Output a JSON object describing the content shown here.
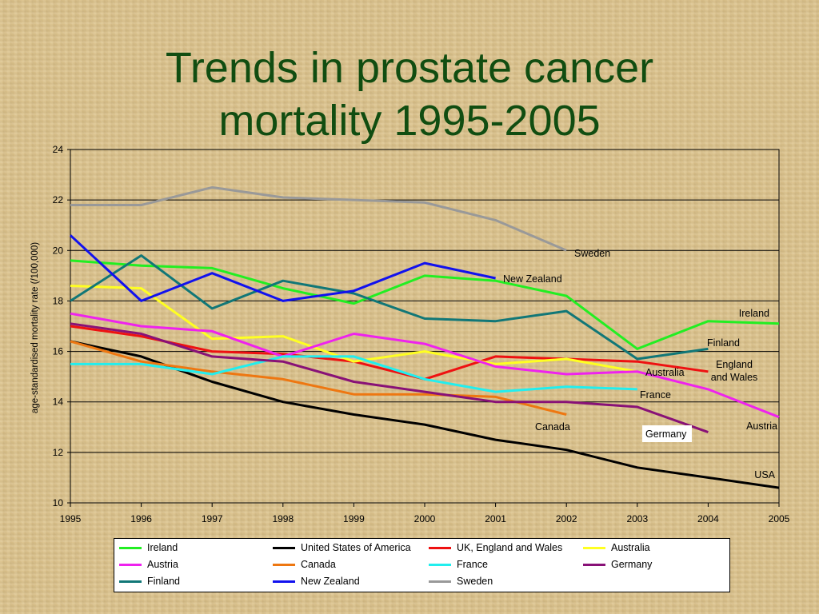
{
  "title_line1": "Trends in prostate cancer",
  "title_line2": "mortality 1995-2005",
  "chart_data": {
    "type": "line",
    "title": "Trends in prostate cancer mortality 1995-2005",
    "xlabel": "",
    "ylabel": "age-standardised mortality rate (/100,000)",
    "x": [
      1995,
      1996,
      1997,
      1998,
      1999,
      2000,
      2001,
      2002,
      2003,
      2004,
      2005
    ],
    "xlim": [
      1995,
      2005
    ],
    "ylim": [
      10,
      24
    ],
    "yticks": [
      10,
      12,
      14,
      16,
      18,
      20,
      22,
      24
    ],
    "grid": "horizontal",
    "legend_position": "bottom",
    "series": [
      {
        "name": "Ireland",
        "color": "#22ee22",
        "values": [
          19.6,
          19.4,
          19.3,
          18.5,
          17.9,
          19.0,
          18.8,
          18.2,
          16.1,
          17.2,
          17.1
        ]
      },
      {
        "name": "United States of America",
        "color": "#000000",
        "values": [
          16.4,
          15.8,
          14.8,
          14.0,
          13.5,
          13.1,
          12.5,
          12.1,
          11.4,
          11.0,
          10.6
        ]
      },
      {
        "name": "UK, England and Wales",
        "color": "#ee1111",
        "values": [
          17.0,
          16.6,
          16.0,
          15.9,
          15.6,
          14.9,
          15.8,
          15.7,
          15.6,
          15.2,
          null
        ]
      },
      {
        "name": "Australia",
        "color": "#ffff22",
        "values": [
          18.6,
          18.5,
          16.5,
          16.6,
          15.6,
          16.0,
          15.5,
          15.7,
          15.2,
          null,
          null
        ]
      },
      {
        "name": "Austria",
        "color": "#ee22ee",
        "values": [
          17.5,
          17.0,
          16.8,
          15.8,
          16.7,
          16.3,
          15.4,
          15.1,
          15.2,
          14.5,
          13.4
        ]
      },
      {
        "name": "Canada",
        "color": "#ee7711",
        "values": [
          16.4,
          15.6,
          15.2,
          14.9,
          14.3,
          14.3,
          14.2,
          13.5,
          null,
          null,
          null
        ]
      },
      {
        "name": "France",
        "color": "#22eeee",
        "values": [
          15.5,
          15.5,
          15.1,
          15.8,
          15.8,
          14.9,
          14.4,
          14.6,
          14.5,
          null,
          null
        ]
      },
      {
        "name": "Germany",
        "color": "#881177",
        "values": [
          17.1,
          16.7,
          15.8,
          15.6,
          14.8,
          14.4,
          14.0,
          14.0,
          13.8,
          12.8,
          null
        ]
      },
      {
        "name": "Finland",
        "color": "#117777",
        "values": [
          18.0,
          19.8,
          17.7,
          18.8,
          18.3,
          17.3,
          17.2,
          17.6,
          15.7,
          16.1,
          null
        ]
      },
      {
        "name": "New Zealand",
        "color": "#1111ee",
        "values": [
          20.6,
          18.0,
          19.1,
          18.0,
          18.4,
          19.5,
          18.9,
          null,
          null,
          null,
          null
        ]
      },
      {
        "name": "Sweden",
        "color": "#999999",
        "values": [
          21.8,
          21.8,
          22.5,
          22.1,
          22.0,
          21.9,
          21.2,
          20.0,
          null,
          null,
          null
        ]
      }
    ],
    "annotations": [
      {
        "text": "Sweden"
      },
      {
        "text": "New Zealand"
      },
      {
        "text": "Ireland"
      },
      {
        "text": "Finland"
      },
      {
        "text": "England and Wales"
      },
      {
        "text": "Australia"
      },
      {
        "text": "France"
      },
      {
        "text": "Canada"
      },
      {
        "text": "Germany"
      },
      {
        "text": "Austria"
      },
      {
        "text": "USA"
      }
    ]
  }
}
